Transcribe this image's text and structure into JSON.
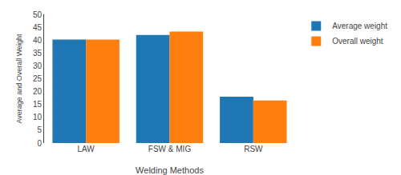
{
  "chart_data": {
    "type": "bar",
    "categories": [
      "LAW",
      "FSW & MIG",
      "RSW"
    ],
    "series": [
      {
        "name": "Average weight",
        "values": [
          40.2,
          42.0,
          18.0
        ]
      },
      {
        "name": "Overall weight",
        "values": [
          40.2,
          43.3,
          16.5
        ]
      }
    ],
    "xlabel": "Welding Methods",
    "ylabel": "Average and Overall Weight",
    "ylim": [
      0,
      50
    ],
    "yticks": [
      0,
      5,
      10,
      15,
      20,
      25,
      30,
      35,
      40,
      45,
      50
    ],
    "grid": false,
    "legend": "right"
  }
}
